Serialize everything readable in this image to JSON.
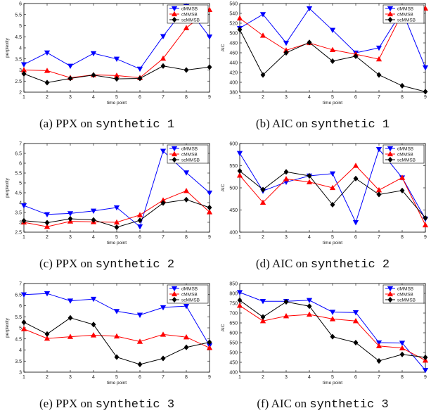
{
  "panels": [
    {
      "caption_prefix": "(a) PPX on",
      "caption_dataset": "synthetic 1"
    },
    {
      "caption_prefix": "(b) AIC on",
      "caption_dataset": "synthetic 1"
    },
    {
      "caption_prefix": "(c) PPX on",
      "caption_dataset": "synthetic 2"
    },
    {
      "caption_prefix": "(d) AIC on",
      "caption_dataset": "synthetic 2"
    },
    {
      "caption_prefix": "(e) PPX on",
      "caption_dataset": "synthetic 3"
    },
    {
      "caption_prefix": "(f) AIC on",
      "caption_dataset": "synthetic 3"
    }
  ],
  "chart_data": [
    {
      "type": "line",
      "xlabel": "time point",
      "ylabel": "perplexity",
      "x": [
        1,
        2,
        3,
        4,
        5,
        6,
        7,
        8,
        9
      ],
      "xlim": [
        1,
        9
      ],
      "ylim": [
        2,
        6
      ],
      "yticks": [
        2,
        2.5,
        3,
        3.5,
        4,
        4.5,
        5,
        5.5,
        6
      ],
      "legend": "top-right",
      "grid": false,
      "series": [
        {
          "name": "dMMSB",
          "color": "#0000ff",
          "marker": "triangle-down",
          "values": [
            3.25,
            3.78,
            3.18,
            3.75,
            3.5,
            3.05,
            4.52,
            5.87,
            4.5
          ]
        },
        {
          "name": "cMMSB",
          "color": "#ff0000",
          "marker": "triangle-up",
          "values": [
            3.0,
            2.97,
            2.65,
            2.78,
            2.75,
            2.65,
            3.52,
            4.9,
            5.72
          ]
        },
        {
          "name": "scMMSB",
          "color": "#000000",
          "marker": "diamond",
          "values": [
            2.83,
            2.43,
            2.62,
            2.77,
            2.6,
            2.62,
            3.18,
            3.0,
            3.13
          ]
        }
      ]
    },
    {
      "type": "line",
      "xlabel": "time point",
      "ylabel": "AIC",
      "x": [
        1,
        2,
        3,
        4,
        5,
        6,
        7,
        8,
        9
      ],
      "xlim": [
        1,
        9
      ],
      "ylim": [
        380,
        560
      ],
      "yticks": [
        380,
        400,
        420,
        440,
        460,
        480,
        500,
        520,
        540,
        560
      ],
      "legend": "top-right",
      "grid": false,
      "series": [
        {
          "name": "dMMSB",
          "color": "#0000ff",
          "marker": "triangle-down",
          "values": [
            510,
            538,
            480,
            550,
            506,
            460,
            470,
            545,
            430
          ]
        },
        {
          "name": "cMMSB",
          "color": "#ff0000",
          "marker": "triangle-up",
          "values": [
            530,
            495,
            465,
            480,
            466,
            457,
            447,
            540,
            550
          ]
        },
        {
          "name": "scMMSB",
          "color": "#000000",
          "marker": "diamond",
          "values": [
            507,
            415,
            460,
            481,
            443,
            453,
            415,
            393,
            381
          ]
        }
      ]
    },
    {
      "type": "line",
      "xlabel": "time point",
      "ylabel": "perplexity",
      "x": [
        1,
        2,
        3,
        4,
        5,
        6,
        7,
        8,
        9
      ],
      "xlim": [
        1,
        9
      ],
      "ylim": [
        2.5,
        7
      ],
      "yticks": [
        2.5,
        3,
        3.5,
        4,
        4.5,
        5,
        5.5,
        6,
        6.5,
        7
      ],
      "legend": "top-right",
      "grid": false,
      "series": [
        {
          "name": "dMMSB",
          "color": "#0000ff",
          "marker": "triangle-down",
          "values": [
            3.85,
            3.4,
            3.45,
            3.58,
            3.75,
            2.78,
            6.62,
            5.52,
            4.5
          ]
        },
        {
          "name": "cMMSB",
          "color": "#ff0000",
          "marker": "triangle-up",
          "values": [
            3.0,
            2.78,
            3.05,
            3.02,
            3.0,
            3.37,
            4.12,
            4.6,
            3.52
          ]
        },
        {
          "name": "scMMSB",
          "color": "#000000",
          "marker": "diamond",
          "values": [
            3.08,
            2.98,
            3.18,
            3.12,
            2.75,
            3.1,
            3.98,
            4.15,
            3.75
          ]
        }
      ]
    },
    {
      "type": "line",
      "xlabel": "time point",
      "ylabel": "AIC",
      "x": [
        1,
        2,
        3,
        4,
        5,
        6,
        7,
        8,
        9
      ],
      "xlim": [
        1,
        9
      ],
      "ylim": [
        400,
        600
      ],
      "yticks": [
        400,
        450,
        500,
        550,
        600
      ],
      "legend": "top-right",
      "grid": false,
      "series": [
        {
          "name": "dMMSB",
          "color": "#0000ff",
          "marker": "triangle-down",
          "values": [
            578,
            493,
            513,
            527,
            532,
            422,
            587,
            523,
            430
          ]
        },
        {
          "name": "cMMSB",
          "color": "#ff0000",
          "marker": "triangle-up",
          "values": [
            528,
            467,
            520,
            513,
            500,
            550,
            495,
            523,
            416
          ]
        },
        {
          "name": "scMMSB",
          "color": "#000000",
          "marker": "diamond",
          "values": [
            538,
            496,
            536,
            527,
            462,
            521,
            485,
            494,
            432
          ]
        }
      ]
    },
    {
      "type": "line",
      "xlabel": "time point",
      "ylabel": "perplexity",
      "x": [
        1,
        2,
        3,
        4,
        5,
        6,
        7,
        8,
        9
      ],
      "xlim": [
        1,
        9
      ],
      "ylim": [
        3,
        7
      ],
      "yticks": [
        3,
        3.5,
        4,
        4.5,
        5,
        5.5,
        6,
        6.5,
        7
      ],
      "legend": "top-right",
      "grid": false,
      "series": [
        {
          "name": "dMMSB",
          "color": "#0000ff",
          "marker": "triangle-down",
          "values": [
            6.5,
            6.55,
            6.22,
            6.3,
            5.75,
            5.58,
            5.92,
            5.98,
            4.2
          ]
        },
        {
          "name": "cMMSB",
          "color": "#ff0000",
          "marker": "triangle-up",
          "values": [
            4.95,
            4.52,
            4.6,
            4.67,
            4.62,
            4.38,
            4.7,
            4.58,
            4.1
          ]
        },
        {
          "name": "scMMSB",
          "color": "#000000",
          "marker": "diamond",
          "values": [
            5.25,
            4.72,
            5.45,
            5.15,
            3.68,
            3.35,
            3.62,
            4.12,
            4.35
          ]
        }
      ]
    },
    {
      "type": "line",
      "xlabel": "time point",
      "ylabel": "AIC",
      "x": [
        1,
        2,
        3,
        4,
        5,
        6,
        7,
        8,
        9
      ],
      "xlim": [
        1,
        9
      ],
      "ylim": [
        400,
        850
      ],
      "yticks": [
        400,
        450,
        500,
        550,
        600,
        650,
        700,
        750,
        800,
        850
      ],
      "legend": "top-right",
      "grid": false,
      "series": [
        {
          "name": "dMMSB",
          "color": "#0000ff",
          "marker": "triangle-down",
          "values": [
            805,
            760,
            760,
            765,
            705,
            703,
            550,
            548,
            410
          ]
        },
        {
          "name": "cMMSB",
          "color": "#ff0000",
          "marker": "triangle-up",
          "values": [
            738,
            660,
            685,
            693,
            670,
            660,
            533,
            522,
            460
          ]
        },
        {
          "name": "scMMSB",
          "color": "#000000",
          "marker": "diamond",
          "values": [
            765,
            680,
            757,
            735,
            580,
            550,
            457,
            490,
            475
          ]
        }
      ]
    }
  ]
}
